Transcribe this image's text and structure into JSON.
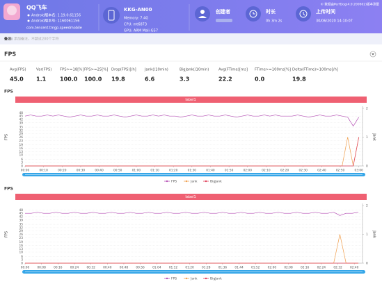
{
  "header": {
    "app": {
      "name": "QQ飞车",
      "version_name": "Android版本名: 1.19.0.61156",
      "version_code": "Android版本号: 1160061156",
      "package": "com.tencent.tmgp.speedmobile"
    },
    "device": {
      "name": "KKG-AN00",
      "memory": "Memory: 7.4G",
      "cpu": "CPU: mt6873",
      "gpu": "GPU: ARM Mali-G57"
    },
    "creator": {
      "label": "创建者"
    },
    "duration": {
      "label": "时长",
      "value": "0h 3m 2s"
    },
    "upload": {
      "label": "上传时间",
      "value": "30/06/2020 14:10:07"
    },
    "copyright": "© 数据由PerfDog(4.0.200602)版本测量"
  },
  "note": {
    "label": "备注:",
    "placeholder": "添加备注，不超过200个字符"
  },
  "section": "FPS",
  "stats": [
    {
      "label": "Avg(FPS)",
      "value": "45.0"
    },
    {
      "label": "Var(FPS)",
      "value": "1.1"
    },
    {
      "label": "FPS>=18[%]",
      "value": "100.0"
    },
    {
      "label": "FPS>=25[%]",
      "value": "100.0"
    },
    {
      "label": "Drop(FPS)[/h]",
      "value": "19.8"
    },
    {
      "label": "Jank(/10min)",
      "value": "6.6"
    },
    {
      "label": "BigJank(/10min)",
      "value": "3.3"
    },
    {
      "label": "Avg(FTime)[ms]",
      "value": "22.2"
    },
    {
      "label": "FTime>=100ms[%]",
      "value": "0.0"
    },
    {
      "label": "Delta(FTime)>100ms[/h]",
      "value": "19.8"
    }
  ],
  "charts": [
    {
      "type": "line",
      "title": "FPS",
      "series_label": "label1",
      "y_label": "FPS",
      "y2_label": "Jank",
      "ylim": [
        0,
        52
      ],
      "yticks": [
        0,
        3,
        6,
        10,
        13,
        16,
        19,
        23,
        26,
        29,
        32,
        35,
        39,
        42,
        45,
        48
      ],
      "y2lim": [
        0,
        2
      ],
      "y2ticks": [
        0,
        1,
        2
      ],
      "xlim": [
        0,
        182
      ],
      "xticks": [
        {
          "value": 0,
          "label": "00:00"
        },
        {
          "value": 10,
          "label": "00:10"
        },
        {
          "value": 20,
          "label": "00:20"
        },
        {
          "value": 30,
          "label": "00:30"
        },
        {
          "value": 40,
          "label": "00:40"
        },
        {
          "value": 50,
          "label": "00:50"
        },
        {
          "value": 60,
          "label": "01:00"
        },
        {
          "value": 70,
          "label": "01:10"
        },
        {
          "value": 80,
          "label": "01:20"
        },
        {
          "value": 90,
          "label": "01:30"
        },
        {
          "value": 100,
          "label": "01:40"
        },
        {
          "value": 110,
          "label": "01:50"
        },
        {
          "value": 120,
          "label": "02:00"
        },
        {
          "value": 130,
          "label": "02:10"
        },
        {
          "value": 140,
          "label": "02:20"
        },
        {
          "value": 150,
          "label": "02:30"
        },
        {
          "value": 160,
          "label": "02:40"
        },
        {
          "value": 170,
          "label": "02:50"
        },
        {
          "value": 180,
          "label": "03:00"
        }
      ],
      "x": [
        0,
        3,
        6,
        9,
        12,
        15,
        18,
        21,
        24,
        27,
        30,
        33,
        36,
        39,
        42,
        45,
        48,
        51,
        54,
        57,
        60,
        63,
        66,
        69,
        72,
        75,
        78,
        81,
        84,
        87,
        90,
        93,
        96,
        99,
        102,
        105,
        108,
        111,
        114,
        117,
        120,
        123,
        126,
        129,
        132,
        135,
        138,
        141,
        144,
        147,
        150,
        153,
        156,
        159,
        162,
        165,
        168,
        171,
        174,
        177,
        180
      ],
      "series": [
        {
          "name": "FPS",
          "color": "#b44fb4",
          "values": [
            45,
            46,
            45,
            45,
            46,
            45,
            46,
            45,
            44,
            45,
            46,
            45,
            45,
            46,
            45,
            45,
            46,
            45,
            44,
            45,
            46,
            45,
            45,
            46,
            45,
            46,
            45,
            45,
            44,
            45,
            46,
            45,
            45,
            46,
            45,
            45,
            46,
            45,
            44,
            45,
            46,
            45,
            45,
            46,
            45,
            46,
            45,
            45,
            45,
            46,
            45,
            44,
            45,
            46,
            45,
            45,
            46,
            45,
            44,
            36,
            44
          ]
        },
        {
          "name": "Jank",
          "color": "#f0a050",
          "axis": "y2",
          "values": [
            0,
            0,
            0,
            0,
            0,
            0,
            0,
            0,
            0,
            0,
            0,
            0,
            0,
            0,
            0,
            0,
            0,
            0,
            0,
            0,
            0,
            0,
            0,
            0,
            0,
            0,
            0,
            0,
            0,
            0,
            0,
            0,
            0,
            0,
            0,
            0,
            0,
            0,
            0,
            0,
            0,
            0,
            0,
            0,
            0,
            0,
            0,
            0,
            0,
            0,
            0,
            0,
            0,
            0,
            0,
            0,
            0,
            0,
            1,
            0,
            1
          ]
        },
        {
          "name": "BigJank",
          "color": "#e0405a",
          "axis": "y2",
          "values": [
            0,
            0,
            0,
            0,
            0,
            0,
            0,
            0,
            0,
            0,
            0,
            0,
            0,
            0,
            0,
            0,
            0,
            0,
            0,
            0,
            0,
            0,
            0,
            0,
            0,
            0,
            0,
            0,
            0,
            0,
            0,
            0,
            0,
            0,
            0,
            0,
            0,
            0,
            0,
            0,
            0,
            0,
            0,
            0,
            0,
            0,
            0,
            0,
            0,
            0,
            0,
            0,
            0,
            0,
            0,
            0,
            0,
            0,
            0,
            0,
            1
          ]
        }
      ]
    },
    {
      "type": "line",
      "title": "FPS",
      "series_label": "label1",
      "y_label": "FPS",
      "y2_label": "Jank",
      "ylim": [
        0,
        52
      ],
      "yticks": [
        0,
        3,
        6,
        10,
        13,
        16,
        19,
        23,
        26,
        29,
        32,
        35,
        39,
        42,
        45,
        48
      ],
      "y2lim": [
        0,
        2
      ],
      "y2ticks": [
        0,
        1,
        2
      ],
      "xlim": [
        0,
        164
      ],
      "xticks": [
        {
          "value": 0,
          "label": "00:00"
        },
        {
          "value": 8,
          "label": "00:08"
        },
        {
          "value": 16,
          "label": "00:16"
        },
        {
          "value": 24,
          "label": "00:24"
        },
        {
          "value": 32,
          "label": "00:32"
        },
        {
          "value": 40,
          "label": "00:40"
        },
        {
          "value": 48,
          "label": "00:48"
        },
        {
          "value": 56,
          "label": "00:56"
        },
        {
          "value": 64,
          "label": "01:04"
        },
        {
          "value": 72,
          "label": "01:12"
        },
        {
          "value": 80,
          "label": "01:20"
        },
        {
          "value": 88,
          "label": "01:28"
        },
        {
          "value": 96,
          "label": "01:36"
        },
        {
          "value": 104,
          "label": "01:44"
        },
        {
          "value": 112,
          "label": "01:52"
        },
        {
          "value": 120,
          "label": "02:00"
        },
        {
          "value": 128,
          "label": "02:08"
        },
        {
          "value": 136,
          "label": "02:16"
        },
        {
          "value": 144,
          "label": "02:24"
        },
        {
          "value": 152,
          "label": "02:32"
        },
        {
          "value": 160,
          "label": "02:40"
        }
      ],
      "x": [
        0,
        3,
        6,
        9,
        12,
        15,
        18,
        21,
        24,
        27,
        30,
        33,
        36,
        39,
        42,
        45,
        48,
        51,
        54,
        57,
        60,
        63,
        66,
        69,
        72,
        75,
        78,
        81,
        84,
        87,
        90,
        93,
        96,
        99,
        102,
        105,
        108,
        111,
        114,
        117,
        120,
        123,
        126,
        129,
        132,
        135,
        138,
        141,
        144,
        147,
        150,
        153,
        156,
        159,
        162
      ],
      "series": [
        {
          "name": "FPS",
          "color": "#b44fb4",
          "values": [
            45,
            45,
            46,
            45,
            45,
            46,
            45,
            45,
            46,
            45,
            45,
            46,
            45,
            45,
            46,
            45,
            45,
            46,
            45,
            45,
            46,
            45,
            45,
            46,
            45,
            45,
            46,
            45,
            45,
            46,
            45,
            45,
            46,
            45,
            45,
            46,
            45,
            45,
            46,
            45,
            45,
            46,
            45,
            45,
            46,
            45,
            45,
            46,
            45,
            45,
            46,
            43,
            45,
            45,
            46
          ]
        },
        {
          "name": "Jank",
          "color": "#f0a050",
          "axis": "y2",
          "values": [
            0,
            0,
            0,
            0,
            0,
            0,
            0,
            0,
            0,
            0,
            0,
            0,
            0,
            0,
            0,
            0,
            0,
            0,
            0,
            0,
            0,
            0,
            0,
            0,
            0,
            0,
            0,
            0,
            0,
            0,
            0,
            0,
            0,
            0,
            0,
            0,
            0,
            0,
            0,
            0,
            0,
            0,
            0,
            0,
            0,
            0,
            0,
            0,
            0,
            0,
            0,
            1,
            0,
            0,
            0
          ]
        },
        {
          "name": "BigJank",
          "color": "#e0405a",
          "axis": "y2",
          "values": [
            0,
            0,
            0,
            0,
            0,
            0,
            0,
            0,
            0,
            0,
            0,
            0,
            0,
            0,
            0,
            0,
            0,
            0,
            0,
            0,
            0,
            0,
            0,
            0,
            0,
            0,
            0,
            0,
            0,
            0,
            0,
            0,
            0,
            0,
            0,
            0,
            0,
            0,
            0,
            0,
            0,
            0,
            0,
            0,
            0,
            0,
            0,
            0,
            0,
            0,
            0,
            0,
            0,
            0,
            0
          ]
        }
      ]
    }
  ]
}
